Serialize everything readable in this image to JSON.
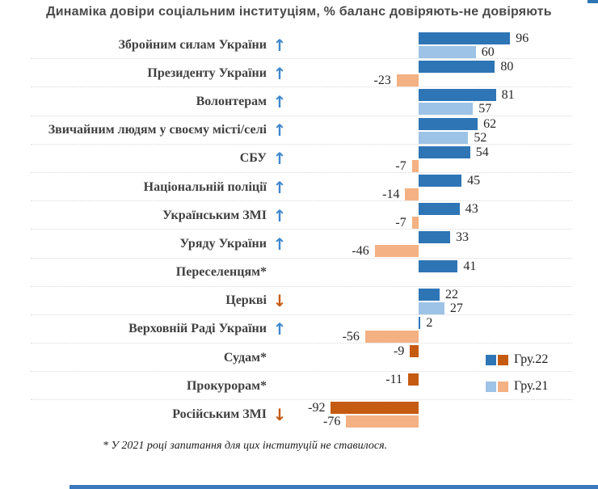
{
  "title": "Динаміка довіри соціальним інституціям, % баланс довіряють-не довіряють",
  "footnote": "* У 2021 році запитання для цих інституцій не ставилося.",
  "legend": {
    "items": [
      {
        "label": "Гру.22",
        "colors": [
          "#2E75B6",
          "#C55A11"
        ]
      },
      {
        "label": "Гру.21",
        "colors": [
          "#9DC3E6",
          "#F4B183"
        ]
      }
    ]
  },
  "colors": {
    "bar_dec22_pos": "#2E75B6",
    "bar_dec21_pos": "#9DC3E6",
    "bar_dec22_neg": "#C55A11",
    "bar_dec21_neg": "#F4B183",
    "arrow_up": "#3E87CE",
    "arrow_down": "#C55A11",
    "separator": "#d9d9d9",
    "accent_strip": "#3B79BC",
    "corner_fragment": "#2E75B6"
  },
  "chart_data": {
    "type": "bar",
    "orientation": "horizontal",
    "value_range": [
      -100,
      100
    ],
    "series_names": [
      "Гру.22",
      "Гру.21"
    ],
    "legend_position": "right-middle",
    "grid": "dotted-row-separators",
    "rows": [
      {
        "label": "Збройним силам України",
        "trend": "up",
        "dec22": 96,
        "dec21": 60
      },
      {
        "label": "Президенту України",
        "trend": "up",
        "dec22": 80,
        "dec21": -23
      },
      {
        "label": "Волонтерам",
        "trend": "up",
        "dec22": 81,
        "dec21": 57
      },
      {
        "label": "Звичайним людям у своєму місті/селі",
        "trend": "up",
        "dec22": 62,
        "dec21": 52
      },
      {
        "label": "СБУ",
        "trend": "up",
        "dec22": 54,
        "dec21": -7
      },
      {
        "label": "Національній поліції",
        "trend": "up",
        "dec22": 45,
        "dec21": -14
      },
      {
        "label": "Українським ЗМІ",
        "trend": "up",
        "dec22": 43,
        "dec21": -7
      },
      {
        "label": "Уряду України",
        "trend": "up",
        "dec22": 33,
        "dec21": -46
      },
      {
        "label": "Переселенцям*",
        "trend": null,
        "dec22": 41,
        "dec21": null
      },
      {
        "label": "Церкві",
        "trend": "down",
        "dec22": 22,
        "dec21": 27
      },
      {
        "label": "Верховній Раді України",
        "trend": "up",
        "dec22": 2,
        "dec21": -56
      },
      {
        "label": "Судам*",
        "trend": null,
        "dec22": -9,
        "dec21": null
      },
      {
        "label": "Прокурорам*",
        "trend": null,
        "dec22": -11,
        "dec21": null
      },
      {
        "label": "Російським ЗМІ",
        "trend": "down",
        "dec22": -92,
        "dec21": -76
      }
    ]
  }
}
